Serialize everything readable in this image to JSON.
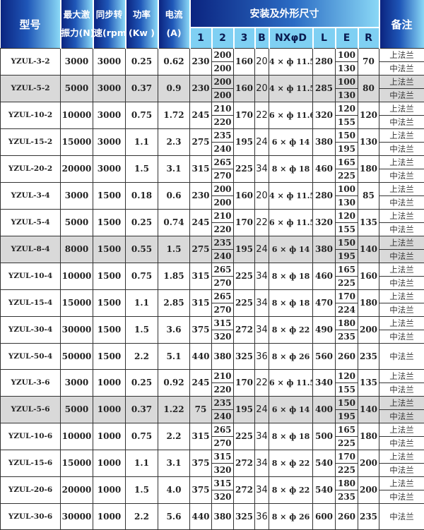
{
  "header": {
    "model": "型号",
    "force": [
      "最大激",
      "振力(N)"
    ],
    "speed": [
      "同步转",
      "速(rpm)"
    ],
    "power": [
      "功率",
      "(Kw )"
    ],
    "current": [
      "电流",
      "(A)"
    ],
    "dims": "安装及外形尺寸",
    "sub": [
      "1",
      "2",
      "3",
      "B",
      "NXφD",
      "L",
      "E",
      "R"
    ],
    "note": "备注"
  },
  "colors": {
    "header_dark": "#0b2480",
    "header_light": "#8ad8f6",
    "subheader": "#7fd0f3",
    "shaded_row": "#d9d9d9"
  },
  "rows": [
    {
      "model": "YZUL-3-2",
      "force": "3000",
      "speed": "3000",
      "power": "0.25",
      "current": "0.62",
      "d1": "230",
      "d2": [
        "200",
        "200"
      ],
      "d3": "160",
      "b": "20",
      "nx": "4 × ф 11.5",
      "l": "280",
      "e": [
        "100",
        "130"
      ],
      "r": "70",
      "note": [
        "上法兰",
        "中法兰"
      ],
      "shaded": false
    },
    {
      "model": "YZUL-5-2",
      "force": "5000",
      "speed": "3000",
      "power": "0.37",
      "current": "0.9",
      "d1": "230",
      "d2": [
        "200",
        "200"
      ],
      "d3": "160",
      "b": "20",
      "nx": "4 × ф 11.5",
      "l": "285",
      "e": [
        "100",
        "130"
      ],
      "r": "80",
      "note": [
        "上法兰",
        "中法兰"
      ],
      "shaded": true
    },
    {
      "model": "YZUL-10-2",
      "force": "10000",
      "speed": "3000",
      "power": "0.75",
      "current": "1.72",
      "d1": "245",
      "d2": [
        "210",
        "220"
      ],
      "d3": "170",
      "b": "22",
      "nx": "6 × ф 11.6",
      "l": "320",
      "e": [
        "120",
        "155"
      ],
      "r": "120",
      "note": [
        "上法兰",
        "中法兰"
      ],
      "shaded": false
    },
    {
      "model": "YZUL-15-2",
      "force": "15000",
      "speed": "3000",
      "power": "1.1",
      "current": "2.3",
      "d1": "275",
      "d2": [
        "235",
        "240"
      ],
      "d3": "195",
      "b": "24",
      "nx": "6 × ф 14",
      "l": "380",
      "e": [
        "150",
        "195"
      ],
      "r": "130",
      "note": [
        "上法兰",
        "中法兰"
      ],
      "shaded": false
    },
    {
      "model": "YZUL-20-2",
      "force": "20000",
      "speed": "3000",
      "power": "1.5",
      "current": "3.1",
      "d1": "315",
      "d2": [
        "265",
        "270"
      ],
      "d3": "225",
      "b": "34",
      "nx": "8 × ф 18",
      "l": "460",
      "e": [
        "165",
        "225"
      ],
      "r": "180",
      "note": [
        "上法兰",
        "中法兰"
      ],
      "shaded": false
    },
    {
      "model": "YZUL-3-4",
      "force": "3000",
      "speed": "1500",
      "power": "0.18",
      "current": "0.6",
      "d1": "230",
      "d2": [
        "200",
        "200"
      ],
      "d3": "160",
      "b": "20",
      "nx": "4 × ф 11.5",
      "l": "280",
      "e": [
        "100",
        "130"
      ],
      "r": "85",
      "note": [
        "上法兰",
        "中法兰"
      ],
      "shaded": false
    },
    {
      "model": "YZUL-5-4",
      "force": "5000",
      "speed": "1500",
      "power": "0.25",
      "current": "0.74",
      "d1": "245",
      "d2": [
        "210",
        "220"
      ],
      "d3": "170",
      "b": "22",
      "nx": "6 × ф 11.5",
      "l": "320",
      "e": [
        "120",
        "155"
      ],
      "r": "135",
      "note": [
        "上法兰",
        "中法兰"
      ],
      "shaded": false
    },
    {
      "model": "YZUL-8-4",
      "force": "8000",
      "speed": "1500",
      "power": "0.55",
      "current": "1.5",
      "d1": "275",
      "d2": [
        "235",
        "240"
      ],
      "d3": "195",
      "b": "24",
      "nx": "6 × ф 14",
      "l": "380",
      "e": [
        "150",
        "195"
      ],
      "r": "140",
      "note": [
        "上法兰",
        "中法兰"
      ],
      "shaded": true
    },
    {
      "model": "YZUL-10-4",
      "force": "10000",
      "speed": "1500",
      "power": "0.75",
      "current": "1.85",
      "d1": "315",
      "d2": [
        "265",
        "270"
      ],
      "d3": "225",
      "b": "34",
      "nx": "8 × ф 18",
      "l": "460",
      "e": [
        "165",
        "225"
      ],
      "r": "160",
      "note": [
        "上法兰",
        "中法兰"
      ],
      "shaded": false
    },
    {
      "model": "YZUL-15-4",
      "force": "15000",
      "speed": "1500",
      "power": "1.1",
      "current": "2.85",
      "d1": "315",
      "d2": [
        "265",
        "270"
      ],
      "d3": "225",
      "b": "34",
      "nx": "8 × ф 18",
      "l": "470",
      "e": [
        "170",
        "224"
      ],
      "r": "180",
      "note": [
        "上法兰",
        "中法兰"
      ],
      "shaded": false
    },
    {
      "model": "YZUL-30-4",
      "force": "30000",
      "speed": "1500",
      "power": "1.5",
      "current": "3.6",
      "d1": "375",
      "d2": [
        "315",
        "320"
      ],
      "d3": "272",
      "b": "34",
      "nx": "8 × ф 22",
      "l": "490",
      "e": [
        "180",
        "235"
      ],
      "r": "200",
      "note": [
        "上法兰",
        "中法兰"
      ],
      "shaded": false
    },
    {
      "model": "YZUL-50-4",
      "force": "50000",
      "speed": "1500",
      "power": "2.2",
      "current": "5.1",
      "d1": "440",
      "d2": [
        "380"
      ],
      "d3": "325",
      "b": "36",
      "nx": "8 × ф 26",
      "l": "560",
      "e": [
        "260"
      ],
      "r": "235",
      "note": [
        "中法兰"
      ],
      "shaded": false
    },
    {
      "model": "YZUL-3-6",
      "force": "3000",
      "speed": "1000",
      "power": "0.25",
      "current": "0.92",
      "d1": "245",
      "d2": [
        "210",
        "220"
      ],
      "d3": "170",
      "b": "22",
      "nx": "6 × ф 11.5",
      "l": "340",
      "e": [
        "120",
        "155"
      ],
      "r": "135",
      "note": [
        "上法兰",
        "中法兰"
      ],
      "shaded": false
    },
    {
      "model": "YZUL-5-6",
      "force": "5000",
      "speed": "1000",
      "power": "0.37",
      "current": "1.22",
      "d1": "75",
      "d2": [
        "235",
        "240"
      ],
      "d3": "195",
      "b": "24",
      "nx": "6 × ф 14",
      "l": "400",
      "e": [
        "150",
        "195"
      ],
      "r": "140",
      "note": [
        "上法兰",
        "中法兰"
      ],
      "shaded": true
    },
    {
      "model": "YZUL-10-6",
      "force": "10000",
      "speed": "1000",
      "power": "0.75",
      "current": "2.2",
      "d1": "315",
      "d2": [
        "265",
        "270"
      ],
      "d3": "225",
      "b": "34",
      "nx": "8 × ф 18",
      "l": "500",
      "e": [
        "165",
        "225"
      ],
      "r": "180",
      "note": [
        "上法兰",
        "中法兰"
      ],
      "shaded": false
    },
    {
      "model": "YZUL-15-6",
      "force": "15000",
      "speed": "1000",
      "power": "1.1",
      "current": "3.1",
      "d1": "375",
      "d2": [
        "315",
        "320"
      ],
      "d3": "272",
      "b": "34",
      "nx": "8 × ф 22",
      "l": "540",
      "e": [
        "170",
        "225"
      ],
      "r": "200",
      "note": [
        "上法兰",
        "中法兰"
      ],
      "shaded": false
    },
    {
      "model": "YZUL-20-6",
      "force": "20000",
      "speed": "1000",
      "power": "1.5",
      "current": "4.0",
      "d1": "375",
      "d2": [
        "315",
        "320"
      ],
      "d3": "272",
      "b": "34",
      "nx": "8 × ф 22",
      "l": "540",
      "e": [
        "180",
        "235"
      ],
      "r": "200",
      "note": [
        "上法兰",
        "中法兰"
      ],
      "shaded": false
    },
    {
      "model": "YZUL-30-6",
      "force": "30000",
      "speed": "1000",
      "power": "2.2",
      "current": "5.6",
      "d1": "440",
      "d2": [
        "380"
      ],
      "d3": "325",
      "b": "36",
      "nx": "8 × ф 26",
      "l": "600",
      "e": [
        "260"
      ],
      "r": "235",
      "note": [
        "中法兰"
      ],
      "shaded": false
    }
  ]
}
